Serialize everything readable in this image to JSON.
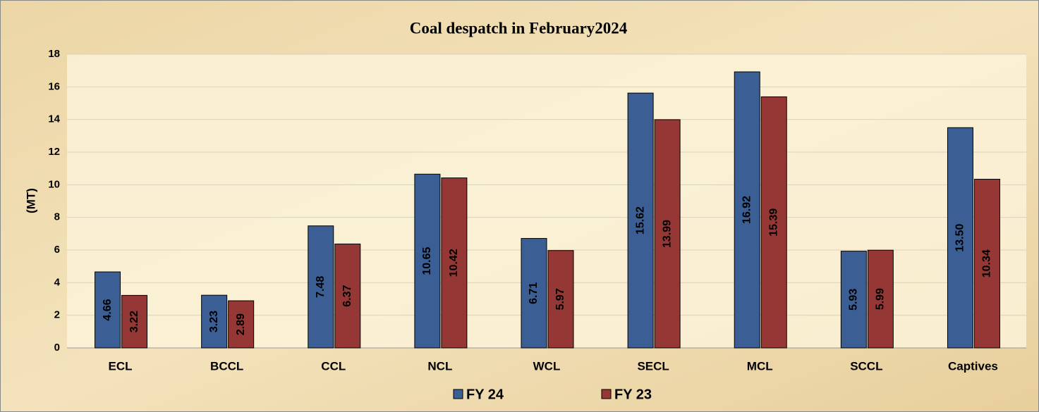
{
  "chart_data": {
    "type": "bar",
    "title": "Coal despatch in February2024",
    "y_label": "(MT)",
    "categories": [
      "ECL",
      "BCCL",
      "CCL",
      "NCL",
      "WCL",
      "SECL",
      "MCL",
      "SCCL",
      "Captives"
    ],
    "series": [
      {
        "name": "FY 24",
        "color": "#3b5f94",
        "values": [
          4.66,
          3.23,
          7.48,
          10.65,
          6.71,
          15.62,
          16.92,
          5.93,
          13.5
        ],
        "value_labels": [
          "4.66",
          "3.23",
          "7.48",
          "10.65",
          "6.71",
          "15.62",
          "16.92",
          "5.93",
          "13.50"
        ]
      },
      {
        "name": "FY 23",
        "color": "#953735",
        "values": [
          3.22,
          2.89,
          6.37,
          10.42,
          5.97,
          13.99,
          15.39,
          5.99,
          10.34
        ],
        "value_labels": [
          "3.22",
          "2.89",
          "6.37",
          "10.42",
          "5.97",
          "13.99",
          "15.39",
          "5.99",
          "10.34"
        ]
      }
    ],
    "ylim": [
      0,
      18
    ],
    "yticks": [
      0,
      2,
      4,
      6,
      8,
      10,
      12,
      14,
      16,
      18
    ],
    "grid": true,
    "legend": "bottom"
  }
}
